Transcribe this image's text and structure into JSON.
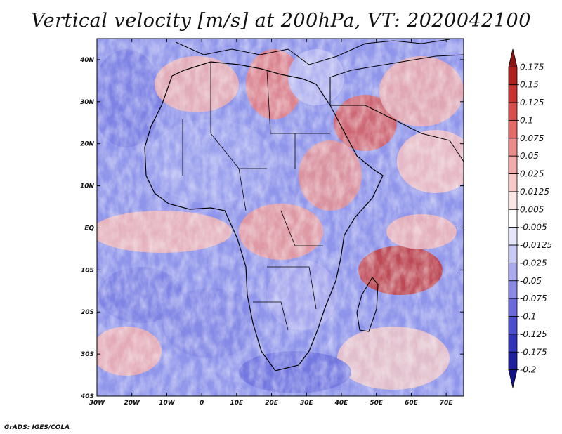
{
  "title": "Vertical velocity [m/s] at 200hPa, VT: 2020042100",
  "credit": "GrADS: IGES/COLA",
  "map": {
    "x_ticks": [
      "30W",
      "20W",
      "10W",
      "0",
      "10E",
      "20E",
      "30E",
      "40E",
      "50E",
      "60E",
      "70E"
    ],
    "y_ticks": [
      "40N",
      "30N",
      "20N",
      "10N",
      "EQ",
      "10S",
      "20S",
      "30S",
      "40S"
    ],
    "lon_range": [
      -30,
      75
    ],
    "lat_range": [
      -40,
      45
    ]
  },
  "colorbar": {
    "levels": [
      "0.175",
      "0.15",
      "0.125",
      "0.1",
      "0.075",
      "0.05",
      "0.025",
      "0.0125",
      "0.005",
      "-0.005",
      "-0.0125",
      "-0.025",
      "-0.05",
      "-0.075",
      "-0.1",
      "-0.125",
      "-0.175",
      "-0.2"
    ],
    "colors": [
      "#8b1414",
      "#b01e1e",
      "#c83232",
      "#da4d4d",
      "#e46a6a",
      "#ec8a8a",
      "#f2aaaa",
      "#f7c8c8",
      "#fbe6e6",
      "#ffffff",
      "#e6e6fb",
      "#c8c8f5",
      "#aaaaee",
      "#8a8ae6",
      "#6a6add",
      "#4d4dd0",
      "#3232bb",
      "#1e1e9e",
      "#14148a"
    ]
  }
}
